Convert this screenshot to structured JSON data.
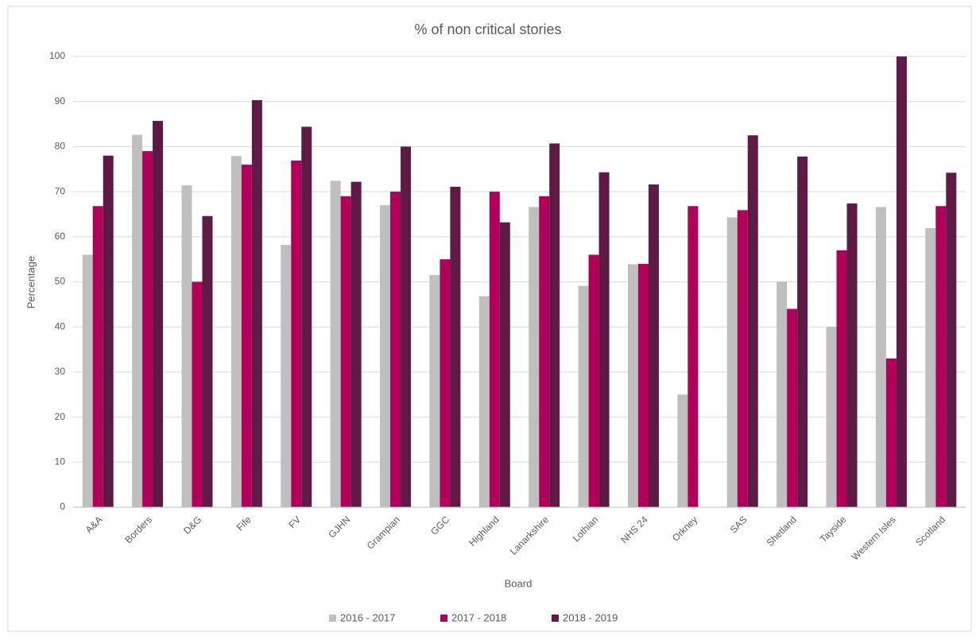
{
  "chart_data": {
    "type": "bar",
    "title": "% of non critical stories",
    "x_label": "Board",
    "y_label": "Percentage",
    "categories": [
      "A&A",
      "Borders",
      "D&G",
      "Fife",
      "FV",
      "GJHN",
      "Grampian",
      "GGC",
      "Highland",
      "Lanarkshire",
      "Lothian",
      "NHS 24",
      "Orkney",
      "SAS",
      "Shetland",
      "Tayside",
      "Western Isles",
      "Scotland"
    ],
    "series": [
      {
        "name": "2016 - 2017",
        "color": "#bfbfbf",
        "values": [
          56,
          82.6,
          71.4,
          77.9,
          58.2,
          72.4,
          67,
          51.5,
          46.8,
          66.6,
          49.1,
          53.9,
          25,
          64.3,
          50,
          40,
          66.6,
          61.9
        ]
      },
      {
        "name": "2017 - 2018",
        "color": "#b0005a",
        "values": [
          66.8,
          79,
          50,
          76,
          76.9,
          69,
          70,
          55,
          70,
          69,
          56,
          54,
          66.8,
          65.9,
          44,
          57,
          33,
          66.8
        ]
      },
      {
        "name": "2018 - 2019",
        "color": "#5c1a45",
        "values": [
          78,
          85.7,
          64.6,
          90.3,
          84.4,
          72.2,
          80,
          71.1,
          63.2,
          80.7,
          74.3,
          71.6,
          null,
          82.5,
          77.8,
          67.4,
          100,
          74.2
        ]
      }
    ],
    "ylim": [
      0,
      100
    ],
    "yticks": [
      0,
      10,
      20,
      30,
      40,
      50,
      60,
      70,
      80,
      90,
      100
    ],
    "grid": true,
    "legend": "bottom"
  }
}
